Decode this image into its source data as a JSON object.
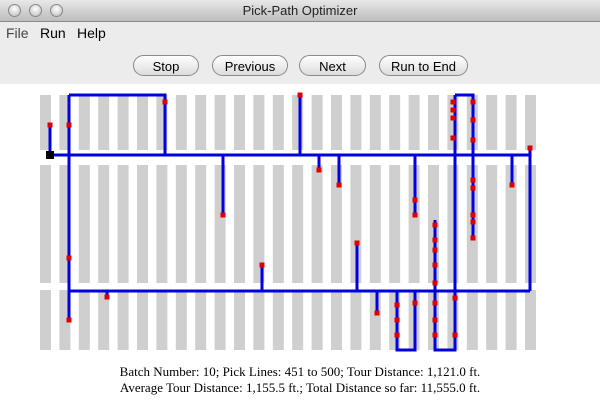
{
  "window": {
    "title": "Pick-Path Optimizer"
  },
  "menu": [
    "File",
    "Run",
    "Help"
  ],
  "buttons": [
    "Stop",
    "Previous",
    "Next",
    "Run to End"
  ],
  "status": [
    "Batch Number: 10; Pick Lines: 451 to 500; Tour Distance: 1,121.0 ft.",
    "Average Tour Distance: 1,155.5 ft.; Total Distance so far: 11,555.0 ft."
  ]
}
